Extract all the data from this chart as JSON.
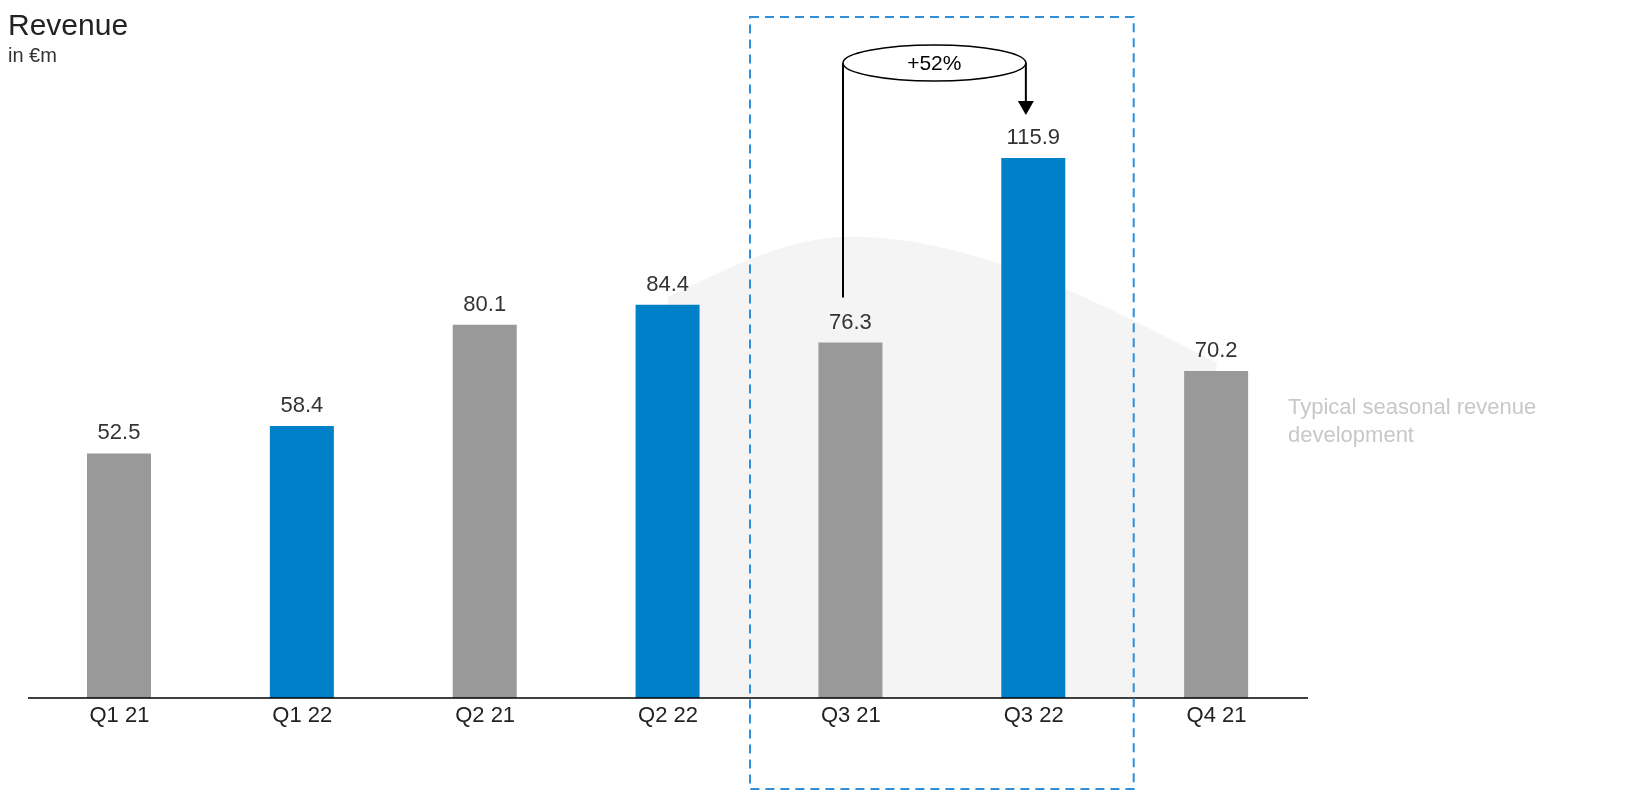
{
  "chart_data": {
    "type": "bar",
    "title": "Revenue",
    "subtitle": "in €m",
    "categories": [
      "Q1 21",
      "Q1 22",
      "Q2 21",
      "Q2 22",
      "Q3 21",
      "Q3 22",
      "Q4 21"
    ],
    "series": [
      {
        "type": "area",
        "name": "Typical seasonal revenue development",
        "color": "#f4f4f4",
        "values": [
          null,
          null,
          null,
          86,
          99,
          null,
          72
        ]
      },
      {
        "values": [
          52.5,
          58.4,
          80.1,
          84.4,
          76.3,
          115.9,
          70.2
        ],
        "colors": [
          "#999999",
          "#0080c8",
          "#999999",
          "#0080c8",
          "#999999",
          "#0080c8",
          "#999999"
        ],
        "data_labels": true
      }
    ],
    "annotations": [
      "+52%"
    ]
  }
}
